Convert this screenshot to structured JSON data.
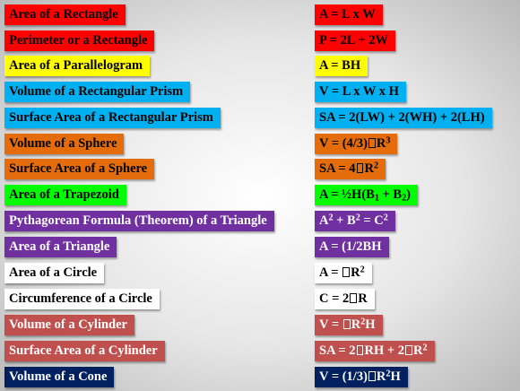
{
  "colors": {
    "red": "#ff0000",
    "yellow": "#ffff00",
    "sky": "#00b0f0",
    "orange": "#e46c0a",
    "green": "#00ff00",
    "purple": "#7030a0",
    "white": "#ffffff",
    "brick": "#c0504d",
    "navy": "#002060"
  },
  "rows": [
    {
      "label": "Area of a Rectangle",
      "formula": "A = L x W"
    },
    {
      "label": "Perimeter or a Rectangle",
      "formula": "P = 2L + 2W"
    },
    {
      "label": "Area of a Parallelogram",
      "formula": "A = BH"
    },
    {
      "label": "Volume of a Rectangular Prism",
      "formula": "V = L x W x H"
    },
    {
      "label": "Surface Area of a Rectangular Prism",
      "formula": "SA = 2(LW) + 2(WH) + 2(LH)"
    },
    {
      "label": "Volume of a Sphere",
      "f_a": "V = (4/3)",
      "f_b": "R",
      "f_sup": "3"
    },
    {
      "label": "Surface Area of a Sphere",
      "f_a": "SA = 4",
      "f_b": "R",
      "f_sup": "2"
    },
    {
      "label": "Area of a Trapezoid",
      "f_a": "A = ½H(B",
      "f_sub1": "1",
      "f_b": " + B",
      "f_sub2": "2",
      "f_c": ")"
    },
    {
      "label": "Pythagorean Formula (Theorem) of a Triangle",
      "f_a": "A",
      "f_sup1": "2",
      "f_b": " + B",
      "f_sup2": "2",
      "f_c": " = C",
      "f_sup3": "2"
    },
    {
      "label": "Area of a Triangle",
      "formula": "A = (1/2BH"
    },
    {
      "label": "Area of a Circle",
      "f_a": "A = ",
      "f_b": "R",
      "f_sup": "2"
    },
    {
      "label": "Circumference of a Circle",
      "f_a": "C = 2",
      "f_b": "R"
    },
    {
      "label": "Volume of a Cylinder",
      "f_a": "V = ",
      "f_b": "R",
      "f_sup": "2",
      "f_c": "H"
    },
    {
      "label": "Surface Area of a Cylinder",
      "f_a": "SA = 2",
      "f_b": "RH + 2",
      "f_c": "R",
      "f_sup": "2"
    },
    {
      "label": "Volume of a Cone",
      "f_a": "V = (1/3)",
      "f_b": "R",
      "f_sup": "2",
      "f_c": "H"
    }
  ]
}
